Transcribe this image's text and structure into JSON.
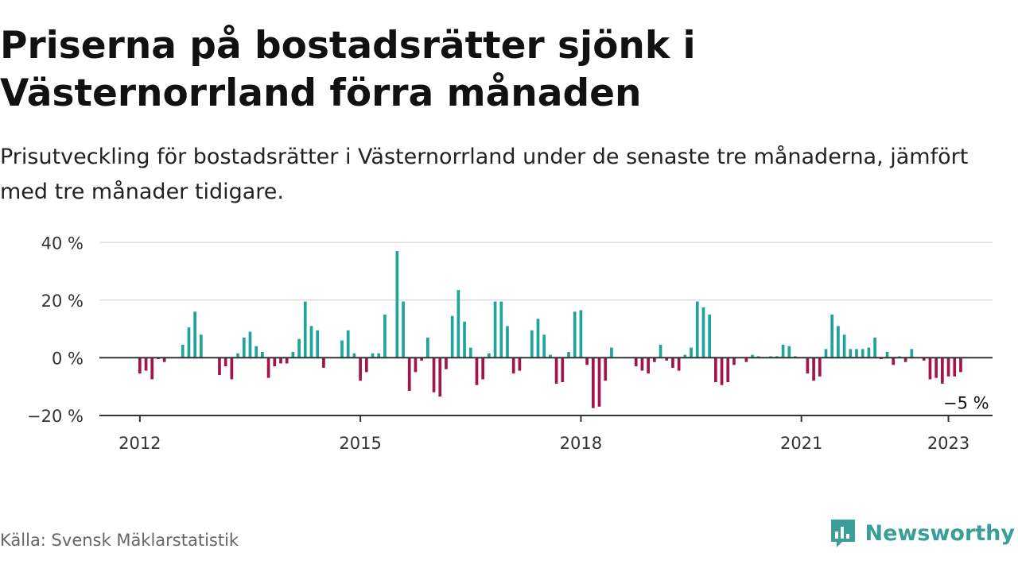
{
  "header": {
    "title": "Priserna på bostadsrätter sjönk i Västernorrland förra månaden",
    "subtitle": "Prisutveckling för bostadsrätter i Västernorrland under de senaste tre månaderna, jämfört med tre månader tidigare."
  },
  "footer": {
    "source": "Källa: Svensk Mäklarstatistik",
    "brand": "Newsworthy"
  },
  "colors": {
    "positive": "#1fa39a",
    "negative": "#a3144c",
    "axis": "#333333",
    "grid": "#dddddd",
    "brand": "#3a9f98"
  },
  "chart_data": {
    "type": "bar",
    "ylim": [
      -22,
      42
    ],
    "yticks": [
      {
        "value": 40,
        "label": "40 %"
      },
      {
        "value": 20,
        "label": "20 %"
      },
      {
        "value": 0,
        "label": "0 %"
      },
      {
        "value": -20,
        "label": "−20 %"
      }
    ],
    "xticks": [
      {
        "value": 2012,
        "label": "2012"
      },
      {
        "value": 2015,
        "label": "2015"
      },
      {
        "value": 2018,
        "label": "2018"
      },
      {
        "value": 2021,
        "label": "2021"
      },
      {
        "value": 2023,
        "label": "2023"
      }
    ],
    "xlim": [
      2011.45,
      2023.6
    ],
    "start": "2012-01",
    "values": [
      -5.5,
      -4.5,
      -7.5,
      -0.5,
      -1.5,
      0,
      0,
      4.5,
      10.5,
      16,
      8,
      0,
      0,
      -6,
      -3,
      -7.5,
      1.5,
      7,
      9,
      4,
      2,
      -7,
      -3,
      -2,
      -2,
      2,
      6.5,
      19.5,
      11,
      9.5,
      -3.5,
      0,
      0,
      6,
      9.5,
      1.5,
      -8,
      -5,
      1.5,
      1.5,
      15,
      0,
      37,
      19.5,
      -11.5,
      -5,
      -1,
      7,
      -12,
      -13.5,
      -4,
      14.5,
      23.5,
      12.5,
      3.5,
      -9.5,
      -7.5,
      1.5,
      19.5,
      19.5,
      11,
      -5.5,
      -4.5,
      0,
      9.5,
      13.5,
      8,
      1,
      -9,
      -8.5,
      2,
      16,
      16.5,
      -2.5,
      -17.5,
      -17,
      -8,
      3.5,
      0,
      0,
      0,
      -3,
      -4.5,
      -5.5,
      -1.5,
      4.5,
      -1,
      -3.5,
      -4.5,
      1,
      3.5,
      19.5,
      17.5,
      15,
      -8.5,
      -9.5,
      -8.5,
      -2.5,
      0,
      -1.5,
      1,
      0.5,
      0,
      0.5,
      0.5,
      4.5,
      4,
      0.5,
      0,
      -5.5,
      -8,
      -6.5,
      3,
      15,
      11,
      8,
      3,
      3,
      3,
      3.5,
      7,
      -0.5,
      2,
      -2.5,
      0.5,
      -1.5,
      3,
      0,
      -1,
      -7.5,
      -7,
      -9,
      -6.5,
      -6.5,
      -5,
      0
    ],
    "annotation": {
      "label": "−5 %",
      "value": -5
    }
  }
}
